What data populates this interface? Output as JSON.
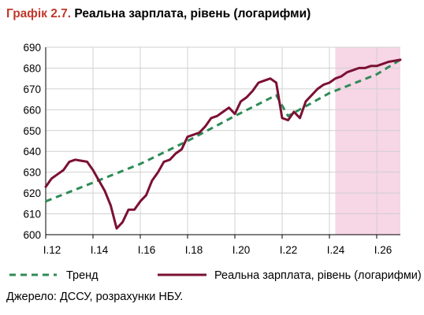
{
  "title_prefix": "Графік 2.7.",
  "title_text": "Реальна зарплата, рівень (логарифми)",
  "source": "Джерело: ДССУ, розрахунки НБУ.",
  "chart_data": {
    "type": "line",
    "title": "Реальна зарплата, рівень (логарифми)",
    "xlabel": "",
    "ylabel": "",
    "xlim": [
      2012.0,
      2027.0
    ],
    "ylim": [
      600,
      690
    ],
    "yticks": [
      600,
      610,
      620,
      630,
      640,
      650,
      660,
      670,
      680,
      690
    ],
    "xtick_values": [
      2012,
      2014,
      2016,
      2018,
      2020,
      2022,
      2024,
      2026
    ],
    "xtick_labels": [
      "I.12",
      "I.14",
      "I.16",
      "I.18",
      "I.20",
      "I.22",
      "I.24",
      "I.26"
    ],
    "grid": true,
    "forecast_shading": {
      "from": 2024.25,
      "to": 2027.0,
      "color": "#f7d6e6"
    },
    "legend_position": "bottom",
    "series": [
      {
        "name": "Тренд",
        "style": "dashed",
        "color": "#2e8b57",
        "x": [
          2012.0,
          2014.0,
          2016.0,
          2018.0,
          2020.0,
          2021.75,
          2022.25,
          2024.0,
          2026.0,
          2027.0
        ],
        "y": [
          616,
          625,
          634,
          645,
          657,
          667,
          657,
          668,
          677,
          684
        ]
      },
      {
        "name": "Реальна зарплата, рівень (логарифми)",
        "style": "solid",
        "color": "#7b1033",
        "x": [
          2012.0,
          2012.25,
          2012.5,
          2012.75,
          2013.0,
          2013.25,
          2013.5,
          2013.75,
          2014.0,
          2014.25,
          2014.5,
          2014.75,
          2015.0,
          2015.25,
          2015.5,
          2015.75,
          2016.0,
          2016.25,
          2016.5,
          2016.75,
          2017.0,
          2017.25,
          2017.5,
          2017.75,
          2018.0,
          2018.25,
          2018.5,
          2018.75,
          2019.0,
          2019.25,
          2019.5,
          2019.75,
          2020.0,
          2020.25,
          2020.5,
          2020.75,
          2021.0,
          2021.25,
          2021.5,
          2021.75,
          2022.0,
          2022.25,
          2022.5,
          2022.75,
          2023.0,
          2023.25,
          2023.5,
          2023.75,
          2024.0,
          2024.25,
          2024.5,
          2024.75,
          2025.0,
          2025.25,
          2025.5,
          2025.75,
          2026.0,
          2026.25,
          2026.5,
          2026.75,
          2027.0
        ],
        "y": [
          623,
          627,
          629,
          631,
          635,
          636,
          635.5,
          635,
          631,
          626,
          621,
          614,
          603,
          606,
          612,
          612,
          616,
          619,
          626,
          630,
          635,
          636,
          639,
          641,
          647,
          648,
          649,
          652,
          656,
          657,
          659,
          661,
          658,
          664,
          666,
          669,
          673,
          674,
          675,
          673,
          656,
          655,
          659,
          656,
          664,
          667,
          670,
          672,
          673,
          675,
          676,
          678,
          679,
          680,
          680,
          681,
          681,
          682,
          683,
          683.5,
          684
        ]
      }
    ]
  }
}
